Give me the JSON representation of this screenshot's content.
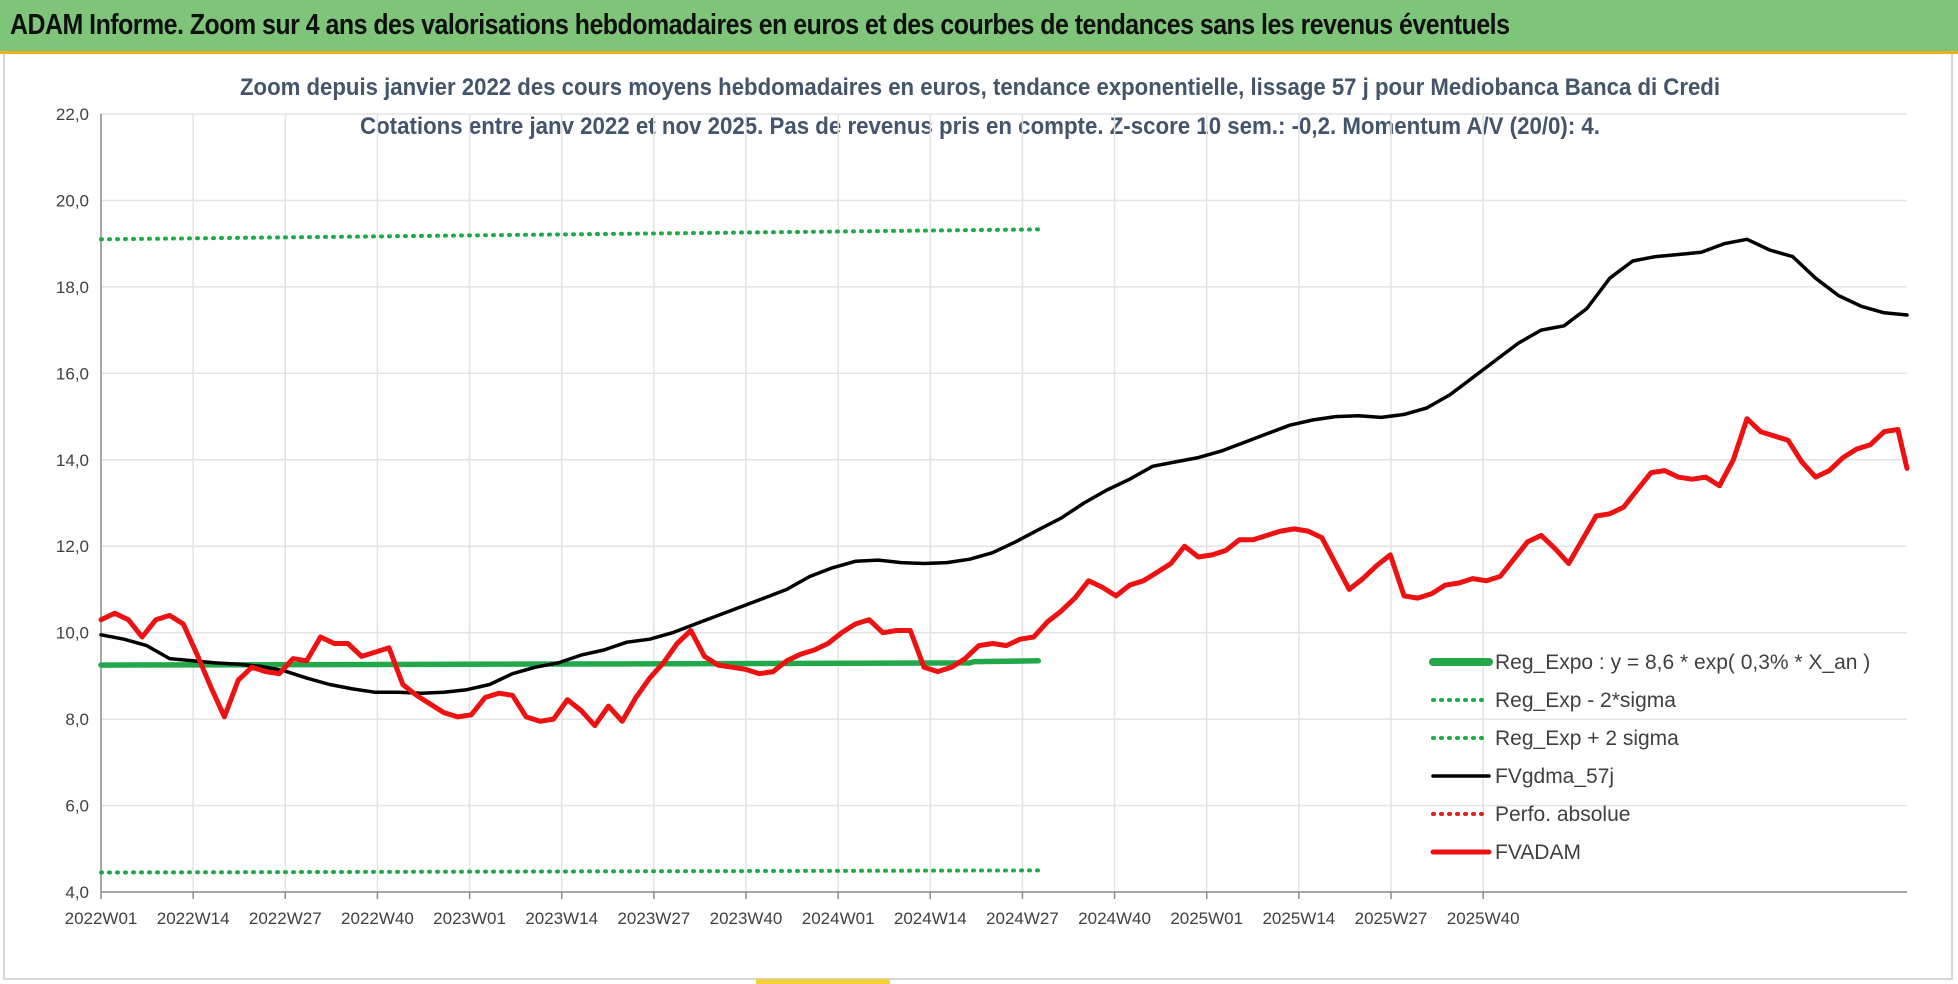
{
  "banner": {
    "title": "ADAM Informe. Zoom sur 4 ans des valorisations hebdomadaires en euros et des courbes de tendances sans les revenus éventuels"
  },
  "chart_data": {
    "type": "line",
    "title": "Zoom depuis janvier 2022 des cours moyens hebdomadaires en euros, tendance exponentielle, lissage 57 j pour Mediobanca Banca di Credi",
    "subtitle": "Cotations entre janv 2022 et nov 2025. Pas de revenus pris en compte. Z-score 10 sem.: -0,2. Momentum A/V (20/0): 4.",
    "xlabel": "",
    "ylabel": "",
    "ylim": [
      4.0,
      22.0
    ],
    "y_ticks": [
      "4,0",
      "6,0",
      "8,0",
      "10,0",
      "12,0",
      "14,0",
      "16,0",
      "18,0",
      "20,0",
      "22,0"
    ],
    "x_ticks": [
      "2022W01",
      "2022W14",
      "2022W27",
      "2022W40",
      "2023W01",
      "2023W14",
      "2023W27",
      "2023W40",
      "2024W01",
      "2024W14",
      "2024W27",
      "2024W40",
      "2025W01",
      "2025W14",
      "2025W27",
      "2025W40"
    ],
    "grid": true,
    "legend_position": "right",
    "series": [
      {
        "name": "Reg_Expo : y = 8,6 * exp( 0,3% * X_an )",
        "style": "solid-thick",
        "color": "#22a84a",
        "values": [
          [
            0,
            9.25
          ],
          [
            125,
            9.28
          ],
          [
            190,
            9.3
          ],
          [
            191,
            9.33
          ],
          [
            205,
            9.35
          ]
        ]
      },
      {
        "name": "Reg_Exp - 2*sigma",
        "style": "dotted",
        "color": "#22a84a",
        "values": [
          [
            0,
            4.45
          ],
          [
            205,
            4.5
          ]
        ]
      },
      {
        "name": "Reg_Exp + 2 sigma",
        "style": "dotted",
        "color": "#22a84a",
        "values": [
          [
            0,
            19.1
          ],
          [
            205,
            19.33
          ]
        ]
      },
      {
        "name": "FVgdma_57j",
        "style": "solid",
        "color": "#000000",
        "values": [
          [
            0,
            9.95
          ],
          [
            5,
            9.85
          ],
          [
            10,
            9.7
          ],
          [
            15,
            9.4
          ],
          [
            20,
            9.35
          ],
          [
            25,
            9.3
          ],
          [
            30,
            9.27
          ],
          [
            35,
            9.22
          ],
          [
            40,
            9.12
          ],
          [
            45,
            8.95
          ],
          [
            50,
            8.8
          ],
          [
            55,
            8.7
          ],
          [
            60,
            8.62
          ],
          [
            65,
            8.62
          ],
          [
            70,
            8.6
          ],
          [
            75,
            8.62
          ],
          [
            80,
            8.68
          ],
          [
            85,
            8.8
          ],
          [
            90,
            9.05
          ],
          [
            95,
            9.2
          ],
          [
            100,
            9.3
          ],
          [
            105,
            9.48
          ],
          [
            110,
            9.6
          ],
          [
            115,
            9.78
          ],
          [
            120,
            9.85
          ],
          [
            125,
            10.0
          ],
          [
            130,
            10.2
          ],
          [
            135,
            10.4
          ],
          [
            140,
            10.6
          ],
          [
            145,
            10.8
          ],
          [
            150,
            11.0
          ],
          [
            155,
            11.3
          ],
          [
            160,
            11.5
          ],
          [
            165,
            11.65
          ],
          [
            170,
            11.68
          ],
          [
            175,
            11.62
          ],
          [
            180,
            11.6
          ],
          [
            185,
            11.62
          ],
          [
            190,
            11.7
          ],
          [
            195,
            11.85
          ],
          [
            200,
            12.1
          ],
          [
            205,
            12.38
          ],
          [
            210,
            12.65
          ],
          [
            215,
            13.0
          ],
          [
            220,
            13.3
          ],
          [
            225,
            13.55
          ],
          [
            230,
            13.85
          ],
          [
            235,
            13.95
          ],
          [
            240,
            14.05
          ],
          [
            245,
            14.2
          ],
          [
            250,
            14.4
          ],
          [
            255,
            14.6
          ],
          [
            260,
            14.8
          ],
          [
            265,
            14.92
          ],
          [
            270,
            15.0
          ],
          [
            275,
            15.02
          ],
          [
            280,
            14.98
          ],
          [
            285,
            15.05
          ],
          [
            290,
            15.2
          ],
          [
            295,
            15.5
          ],
          [
            300,
            15.9
          ],
          [
            305,
            16.3
          ],
          [
            310,
            16.7
          ],
          [
            315,
            17.0
          ],
          [
            320,
            17.1
          ],
          [
            325,
            17.5
          ],
          [
            330,
            18.2
          ],
          [
            335,
            18.6
          ],
          [
            340,
            18.7
          ],
          [
            345,
            18.75
          ],
          [
            350,
            18.8
          ],
          [
            355,
            19.0
          ],
          [
            360,
            19.1
          ],
          [
            365,
            18.85
          ],
          [
            370,
            18.7
          ],
          [
            375,
            18.2
          ],
          [
            380,
            17.8
          ],
          [
            385,
            17.55
          ],
          [
            390,
            17.4
          ],
          [
            395,
            17.35
          ]
        ]
      },
      {
        "name": "Perfo. absolue",
        "style": "dotted",
        "color": "#e02020",
        "values": []
      },
      {
        "name": "FVADAM",
        "style": "solid-thick",
        "color": "#ee1111",
        "values": [
          [
            0,
            10.3
          ],
          [
            3,
            10.45
          ],
          [
            6,
            10.3
          ],
          [
            9,
            9.9
          ],
          [
            12,
            10.3
          ],
          [
            15,
            10.4
          ],
          [
            18,
            10.2
          ],
          [
            21,
            9.5
          ],
          [
            24,
            8.75
          ],
          [
            27,
            8.05
          ],
          [
            30,
            8.9
          ],
          [
            33,
            9.2
          ],
          [
            36,
            9.1
          ],
          [
            39,
            9.05
          ],
          [
            42,
            9.4
          ],
          [
            45,
            9.35
          ],
          [
            48,
            9.9
          ],
          [
            51,
            9.75
          ],
          [
            54,
            9.75
          ],
          [
            57,
            9.45
          ],
          [
            60,
            9.55
          ],
          [
            63,
            9.65
          ],
          [
            66,
            8.8
          ],
          [
            69,
            8.55
          ],
          [
            72,
            8.35
          ],
          [
            75,
            8.15
          ],
          [
            78,
            8.05
          ],
          [
            81,
            8.1
          ],
          [
            84,
            8.5
          ],
          [
            87,
            8.6
          ],
          [
            90,
            8.55
          ],
          [
            93,
            8.05
          ],
          [
            96,
            7.95
          ],
          [
            99,
            8.0
          ],
          [
            102,
            8.45
          ],
          [
            105,
            8.2
          ],
          [
            108,
            7.85
          ],
          [
            111,
            8.3
          ],
          [
            114,
            7.95
          ],
          [
            117,
            8.5
          ],
          [
            120,
            8.95
          ],
          [
            123,
            9.3
          ],
          [
            126,
            9.75
          ],
          [
            129,
            10.05
          ],
          [
            132,
            9.45
          ],
          [
            135,
            9.25
          ],
          [
            138,
            9.2
          ],
          [
            141,
            9.15
          ],
          [
            144,
            9.05
          ],
          [
            147,
            9.1
          ],
          [
            150,
            9.35
          ],
          [
            153,
            9.5
          ],
          [
            156,
            9.6
          ],
          [
            159,
            9.75
          ],
          [
            162,
            10.0
          ],
          [
            165,
            10.2
          ],
          [
            168,
            10.3
          ],
          [
            171,
            10.0
          ],
          [
            174,
            10.05
          ],
          [
            177,
            10.05
          ],
          [
            180,
            9.2
          ],
          [
            183,
            9.1
          ],
          [
            186,
            9.2
          ],
          [
            189,
            9.4
          ],
          [
            192,
            9.7
          ],
          [
            195,
            9.75
          ],
          [
            198,
            9.7
          ],
          [
            201,
            9.85
          ],
          [
            204,
            9.9
          ],
          [
            207,
            10.25
          ],
          [
            210,
            10.5
          ],
          [
            213,
            10.8
          ],
          [
            216,
            11.2
          ],
          [
            219,
            11.05
          ],
          [
            222,
            10.85
          ],
          [
            225,
            11.1
          ],
          [
            228,
            11.2
          ],
          [
            231,
            11.4
          ],
          [
            234,
            11.6
          ],
          [
            237,
            12.0
          ],
          [
            240,
            11.75
          ],
          [
            243,
            11.8
          ],
          [
            246,
            11.9
          ],
          [
            249,
            12.15
          ],
          [
            252,
            12.15
          ],
          [
            255,
            12.25
          ],
          [
            258,
            12.35
          ],
          [
            261,
            12.4
          ],
          [
            264,
            12.35
          ],
          [
            267,
            12.2
          ],
          [
            270,
            11.6
          ],
          [
            273,
            11.0
          ],
          [
            276,
            11.25
          ],
          [
            279,
            11.55
          ],
          [
            282,
            11.8
          ],
          [
            285,
            10.85
          ],
          [
            288,
            10.8
          ],
          [
            291,
            10.9
          ],
          [
            294,
            11.1
          ],
          [
            297,
            11.15
          ],
          [
            300,
            11.25
          ],
          [
            303,
            11.2
          ],
          [
            306,
            11.3
          ],
          [
            309,
            11.7
          ],
          [
            312,
            12.1
          ],
          [
            315,
            12.25
          ],
          [
            318,
            11.95
          ],
          [
            321,
            11.6
          ],
          [
            324,
            12.15
          ],
          [
            327,
            12.7
          ],
          [
            330,
            12.75
          ],
          [
            333,
            12.9
          ],
          [
            336,
            13.3
          ],
          [
            339,
            13.7
          ],
          [
            342,
            13.75
          ],
          [
            345,
            13.6
          ],
          [
            348,
            13.55
          ],
          [
            351,
            13.6
          ],
          [
            354,
            13.4
          ],
          [
            357,
            14.0
          ],
          [
            360,
            14.95
          ],
          [
            363,
            14.65
          ],
          [
            366,
            14.55
          ],
          [
            369,
            14.45
          ],
          [
            372,
            13.95
          ],
          [
            375,
            13.6
          ],
          [
            378,
            13.75
          ],
          [
            381,
            14.05
          ],
          [
            384,
            14.25
          ],
          [
            387,
            14.35
          ],
          [
            390,
            14.65
          ],
          [
            393,
            14.7
          ],
          [
            395,
            13.8
          ]
        ]
      }
    ]
  },
  "legend": {
    "items": [
      {
        "label": "Reg_Expo : y = 8,6 * exp( 0,3% *  X_an )",
        "color": "#22a84a",
        "style": "solid-thick"
      },
      {
        "label": "Reg_Exp - 2*sigma",
        "color": "#22a84a",
        "style": "dotted"
      },
      {
        "label": "Reg_Exp + 2 sigma",
        "color": "#22a84a",
        "style": "dotted"
      },
      {
        "label": "FVgdma_57j",
        "color": "#000000",
        "style": "solid"
      },
      {
        "label": "Perfo. absolue",
        "color": "#e02020",
        "style": "dotted"
      },
      {
        "label": "FVADAM",
        "color": "#ee1111",
        "style": "solid-thick"
      }
    ]
  }
}
